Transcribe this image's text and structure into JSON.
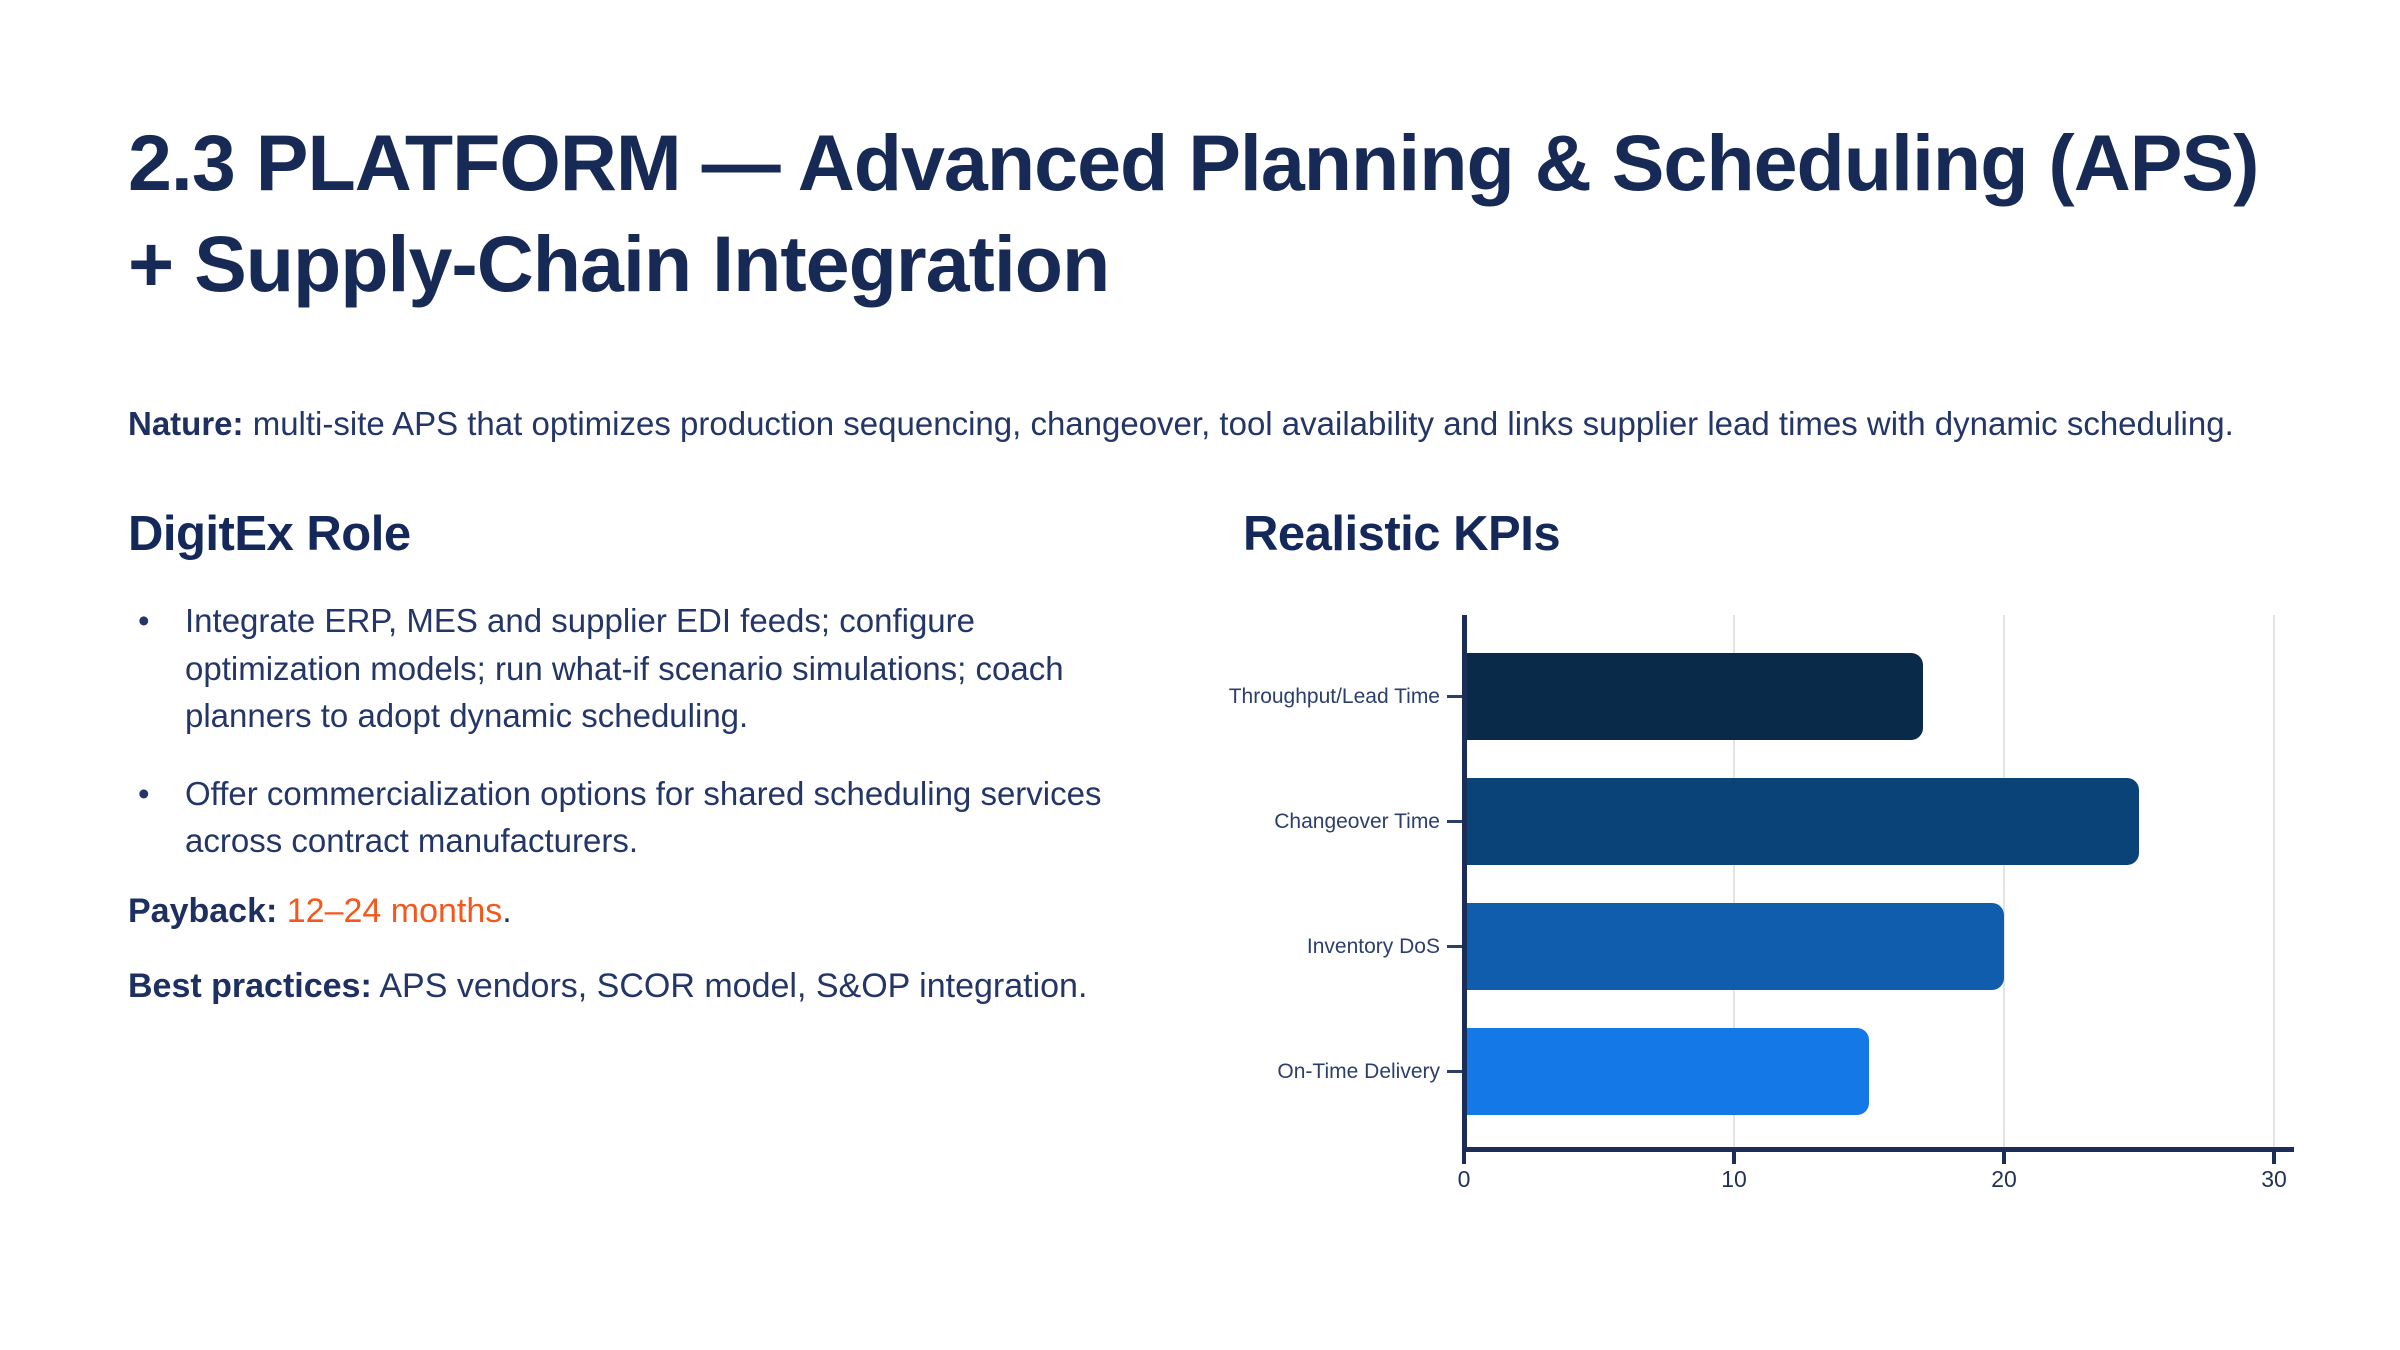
{
  "slide": {
    "title": "2.3 PLATFORM — Advanced Planning & Scheduling (APS)\n+ Supply-Chain Integration",
    "nature_label": "Nature:",
    "nature_text": " multi-site APS that optimizes production sequencing, changeover, tool availability and links supplier lead times with dynamic scheduling."
  },
  "left_column": {
    "heading": "DigitEx Role",
    "bullets": [
      "Integrate ERP, MES and supplier EDI feeds; configure optimization models; run what-if scenario simulations; coach planners to adopt dynamic scheduling.",
      "Offer commercialization options for shared scheduling services across contract manufacturers."
    ],
    "payback_label": "Payback:",
    "payback_value": " 12–24 months",
    "payback_period": ".",
    "best_practices_label": "Best practices:",
    "best_practices_text": " APS vendors, SCOR model, S&OP integration."
  },
  "right_column": {
    "heading": "Realistic KPIs"
  },
  "chart_data": {
    "type": "bar",
    "orientation": "horizontal",
    "title": "Realistic KPIs",
    "categories": [
      "Throughput/Lead Time",
      "Changeover Time",
      "Inventory DoS",
      "On-Time Delivery"
    ],
    "values": [
      17,
      25,
      20,
      15
    ],
    "bar_colors": [
      "#0a2a4a",
      "#0a4377",
      "#0f5dac",
      "#1478e6"
    ],
    "xlim": [
      0,
      30
    ],
    "x_ticks": [
      0,
      10,
      20,
      30
    ],
    "grid": true,
    "legend": "none",
    "xlabel": "",
    "ylabel": ""
  },
  "colors": {
    "background": "#ffffff",
    "title_navy": "#172a56",
    "body_navy": "#233667",
    "bold_navy": "#1d3060",
    "accent_orange": "#f4581c",
    "axis_navy": "#1c2e57",
    "gridline_gray": "#e4e4e4"
  }
}
